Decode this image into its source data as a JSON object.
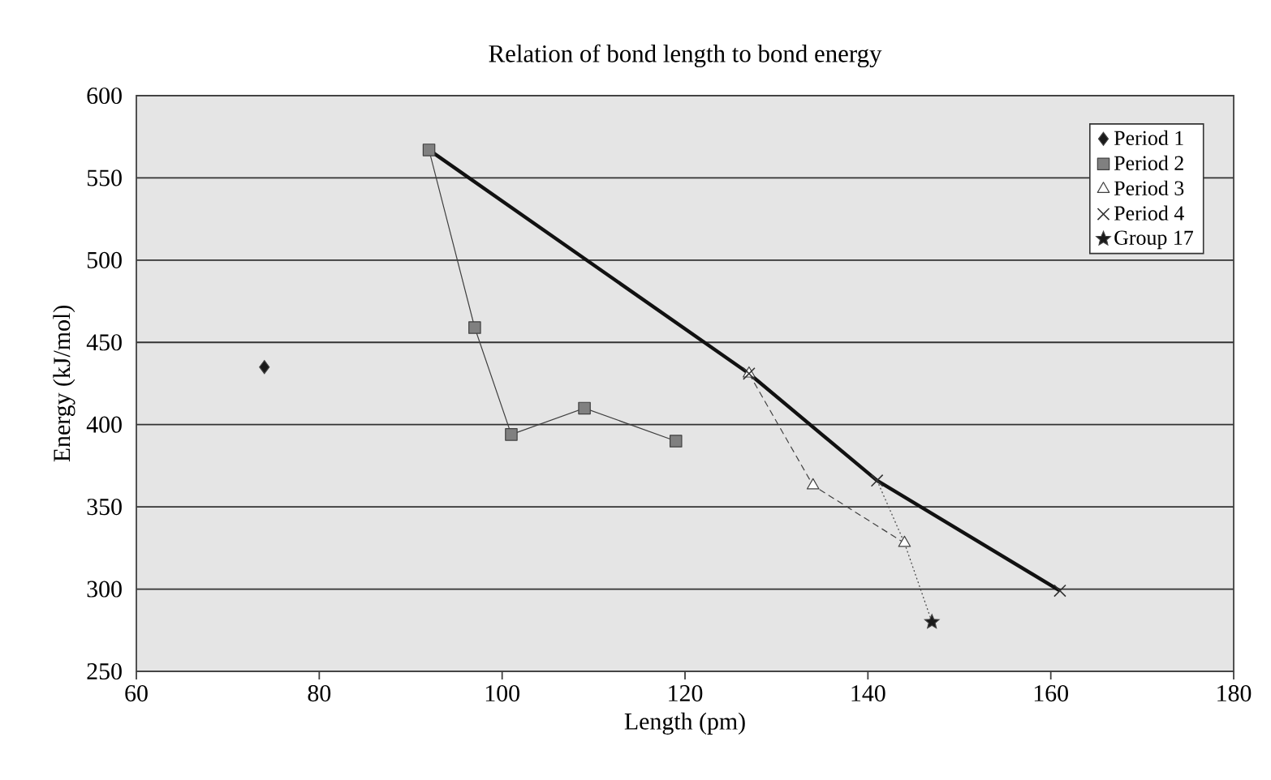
{
  "chart_data": {
    "type": "line",
    "title": "Relation of bond length to bond energy",
    "xlabel": "Length (pm)",
    "ylabel": "Energy (kJ/mol)",
    "xlim": [
      60,
      180
    ],
    "ylim": [
      250,
      600
    ],
    "xticks": [
      60,
      80,
      100,
      120,
      140,
      160,
      180
    ],
    "yticks": [
      250,
      300,
      350,
      400,
      450,
      500,
      550,
      600
    ],
    "grid": "y",
    "legend": "top right",
    "series": [
      {
        "marker": "none",
        "line_style": "solid",
        "color": "#111111",
        "x": [
          92,
          127,
          141,
          161
        ],
        "values": [
          567,
          431,
          366,
          299
        ]
      },
      {
        "marker": "none",
        "line_style": "dotted",
        "color": "#444444",
        "x": [
          141,
          144,
          147
        ],
        "values": [
          366,
          328,
          280
        ]
      },
      {
        "name": "Period 1",
        "type": "scatter",
        "marker": "diamond",
        "color": "#1a1a1a",
        "x": [
          74
        ],
        "values": [
          435
        ]
      },
      {
        "name": "Period 2",
        "marker": "square",
        "line_style": "solid",
        "color": "#808080",
        "x": [
          92,
          97,
          101,
          109,
          119
        ],
        "values": [
          567,
          459,
          394,
          410,
          390
        ]
      },
      {
        "name": "Period 3",
        "marker": "triangle",
        "line_style": "dashed",
        "color": "#404040",
        "x": [
          127,
          134,
          144
        ],
        "values": [
          431,
          363,
          328
        ]
      },
      {
        "name": "Period 4",
        "type": "scatter",
        "marker": "cross",
        "color": "#333333",
        "x": [
          127,
          141,
          161
        ],
        "values": [
          431,
          366,
          299
        ]
      },
      {
        "name": "Group 17",
        "type": "scatter",
        "marker": "star",
        "color": "#1a1a1a",
        "x": [
          147
        ],
        "values": [
          280
        ]
      }
    ]
  }
}
